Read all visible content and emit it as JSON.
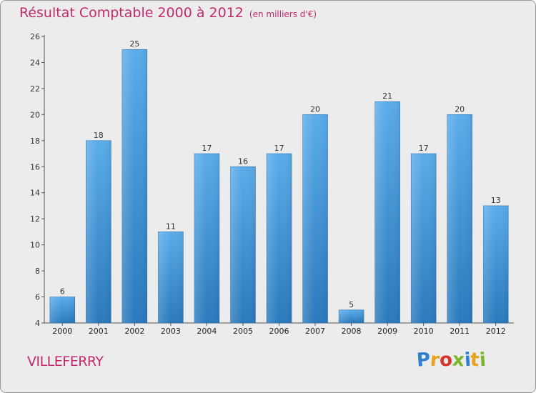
{
  "header": {
    "title": "Résultat Comptable 2000 à 2012",
    "unit": "(en milliers d'€)"
  },
  "footer": {
    "commune": "VILLEFERRY",
    "logo_letters": [
      "P",
      "r",
      "o",
      "x",
      "i",
      "t",
      "i"
    ],
    "logo_colors": [
      "#2f7fd0",
      "#e9a01c",
      "#d9322b",
      "#7ab52e",
      "#2f7fd0",
      "#e9a01c",
      "#7ab52e"
    ]
  },
  "chart_data": {
    "type": "bar",
    "title": "Résultat Comptable 2000 à 2012",
    "categories": [
      "2000",
      "2001",
      "2002",
      "2003",
      "2004",
      "2005",
      "2006",
      "2007",
      "2008",
      "2009",
      "2010",
      "2011",
      "2012"
    ],
    "values": [
      6,
      18,
      25,
      11,
      17,
      16,
      17,
      20,
      5,
      21,
      17,
      20,
      13
    ],
    "ylim": [
      4,
      26
    ],
    "yticks": [
      4,
      6,
      8,
      10,
      12,
      14,
      16,
      18,
      20,
      22,
      24,
      26
    ],
    "xlabel": "",
    "ylabel": "",
    "grid": false,
    "bar_color": "#3b8fd6"
  }
}
